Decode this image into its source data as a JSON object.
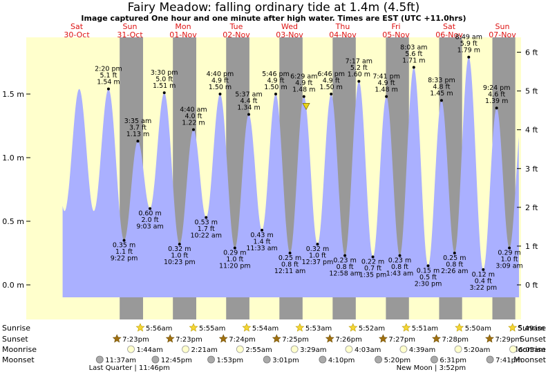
{
  "chart_data": {
    "type": "area",
    "title": "Fairy Meadow: falling  ordinary tide at 1.4m (4.5ft)",
    "subtitle": "Image captured One hour and one minute after high water. Times are EST (UTC +11.0hrs)",
    "days": [
      {
        "dow": "Sat",
        "date": "30-Oct",
        "hour": 0
      },
      {
        "dow": "Sun",
        "date": "31-Oct",
        "hour": 24
      },
      {
        "dow": "Mon",
        "date": "01-Nov",
        "hour": 48
      },
      {
        "dow": "Tue",
        "date": "02-Nov",
        "hour": 72
      },
      {
        "dow": "Wed",
        "date": "03-Nov",
        "hour": 96
      },
      {
        "dow": "Thu",
        "date": "04-Nov",
        "hour": 120
      },
      {
        "dow": "Fri",
        "date": "05-Nov",
        "hour": 144
      },
      {
        "dow": "Sat",
        "date": "06-Nov",
        "hour": 168
      },
      {
        "dow": "Sun",
        "date": "07-Nov",
        "hour": 192
      }
    ],
    "y_left_ticks": [
      {
        "v": 0.0,
        "label": "0.0 m"
      },
      {
        "v": 0.5,
        "label": "0.5 m"
      },
      {
        "v": 1.0,
        "label": "1.0 m"
      },
      {
        "v": 1.5,
        "label": "1.5 m"
      }
    ],
    "y_right_ticks": [
      {
        "ft": 0,
        "label": "0 ft"
      },
      {
        "ft": 1,
        "label": "1 ft"
      },
      {
        "ft": 2,
        "label": "2 ft"
      },
      {
        "ft": 3,
        "label": "3 ft"
      },
      {
        "ft": 4,
        "label": "4 ft"
      },
      {
        "ft": 5,
        "label": "5 ft"
      },
      {
        "ft": 6,
        "label": "6 ft"
      }
    ],
    "ylim_m": [
      -0.2,
      1.95
    ],
    "series_start_level": 0.62,
    "tides": [
      {
        "hour": 14.33,
        "type": "high",
        "time": "2:20 pm",
        "ft": "5.1 ft",
        "m": 1.54,
        "m_label": "1.54 m"
      },
      {
        "hour": 21.37,
        "type": "low",
        "time": "9:22 pm",
        "ft": "1.1 ft",
        "m": 0.35,
        "m_label": "0.35 m"
      },
      {
        "hour": 27.58,
        "type": "high",
        "time": "3:35 am",
        "ft": "3.7 ft",
        "m": 1.13,
        "m_label": "1.13 m"
      },
      {
        "hour": 33.05,
        "type": "low",
        "time": "9:03 am",
        "ft": "2.0 ft",
        "m": 0.6,
        "m_label": "0.60 m"
      },
      {
        "hour": 39.5,
        "type": "high",
        "time": "3:30 pm",
        "ft": "5.0 ft",
        "m": 1.51,
        "m_label": "1.51 m"
      },
      {
        "hour": 46.38,
        "type": "low",
        "time": "10:23 pm",
        "ft": "1.0 ft",
        "m": 0.32,
        "m_label": "0.32 m"
      },
      {
        "hour": 52.67,
        "type": "high",
        "time": "4:40 am",
        "ft": "4.0 ft",
        "m": 1.22,
        "m_label": "1.22 m"
      },
      {
        "hour": 58.37,
        "type": "low",
        "time": "10:22 am",
        "ft": "1.7 ft",
        "m": 0.53,
        "m_label": "0.53 m"
      },
      {
        "hour": 64.67,
        "type": "high",
        "time": "4:40 pm",
        "ft": "4.9 ft",
        "m": 1.5,
        "m_label": "1.50 m"
      },
      {
        "hour": 71.33,
        "type": "low",
        "time": "11:20 pm",
        "ft": "1.0 ft",
        "m": 0.29,
        "m_label": "0.29 m"
      },
      {
        "hour": 77.62,
        "type": "high",
        "time": "5:37 am",
        "ft": "4.4 ft",
        "m": 1.34,
        "m_label": "1.34 m"
      },
      {
        "hour": 83.55,
        "type": "low",
        "time": "11:33 am",
        "ft": "1.4 ft",
        "m": 0.43,
        "m_label": "0.43 m"
      },
      {
        "hour": 89.77,
        "type": "high",
        "time": "5:46 pm",
        "ft": "4.9 ft",
        "m": 1.5,
        "m_label": "1.50 m"
      },
      {
        "hour": 96.18,
        "type": "low",
        "time": "12:11 am",
        "ft": "0.8 ft",
        "m": 0.25,
        "m_label": "0.25 m"
      },
      {
        "hour": 102.48,
        "type": "high",
        "time": "6:29 am",
        "ft": "4.9 ft",
        "m": 1.48,
        "m_label": "1.48 m"
      },
      {
        "hour": 108.62,
        "type": "low",
        "time": "12:37 pm",
        "ft": "1.0 ft",
        "m": 0.32,
        "m_label": "0.32 m"
      },
      {
        "hour": 114.77,
        "type": "high",
        "time": "6:46 pm",
        "ft": "4.9 ft",
        "m": 1.5,
        "m_label": "1.50 m"
      },
      {
        "hour": 120.97,
        "type": "low",
        "time": "12:58 am",
        "ft": "0.8 ft",
        "m": 0.23,
        "m_label": "0.23 m"
      },
      {
        "hour": 127.28,
        "type": "high",
        "time": "7:17 am",
        "ft": "5.2 ft",
        "m": 1.6,
        "m_label": "1.60 m"
      },
      {
        "hour": 133.58,
        "type": "low",
        "time": "1:35 pm",
        "ft": "0.7 ft",
        "m": 0.22,
        "m_label": "0.22 m"
      },
      {
        "hour": 139.68,
        "type": "high",
        "time": "7:41 pm",
        "ft": "4.9 ft",
        "m": 1.48,
        "m_label": "1.48 m"
      },
      {
        "hour": 145.72,
        "type": "low",
        "time": "1:43 am",
        "ft": "0.8 ft",
        "m": 0.23,
        "m_label": "0.23 m"
      },
      {
        "hour": 152.05,
        "type": "high",
        "time": "8:03 am",
        "ft": "5.6 ft",
        "m": 1.71,
        "m_label": "1.71 m"
      },
      {
        "hour": 158.5,
        "type": "low",
        "time": "2:30 pm",
        "ft": "0.5 ft",
        "m": 0.15,
        "m_label": "0.15 m"
      },
      {
        "hour": 164.55,
        "type": "high",
        "time": "8:33 pm",
        "ft": "4.8 ft",
        "m": 1.45,
        "m_label": "1.45 m"
      },
      {
        "hour": 170.43,
        "type": "low",
        "time": "2:26 am",
        "ft": "0.8 ft",
        "m": 0.25,
        "m_label": "0.25 m"
      },
      {
        "hour": 176.82,
        "type": "high",
        "time": "8:49 am",
        "ft": "5.9 ft",
        "m": 1.79,
        "m_label": "1.79 m"
      },
      {
        "hour": 183.37,
        "type": "low",
        "time": "3:22 pm",
        "ft": "0.4 ft",
        "m": 0.12,
        "m_label": "0.12 m"
      },
      {
        "hour": 189.4,
        "type": "high",
        "time": "9:24 pm",
        "ft": "4.6 ft",
        "m": 1.39,
        "m_label": "1.39 m"
      },
      {
        "hour": 195.15,
        "type": "low",
        "time": "3:09 am",
        "ft": "1.0 ft",
        "m": 0.29,
        "m_label": "0.29 m"
      }
    ],
    "series_end_hour": 199.5,
    "series_end_level": 0.95,
    "current_marker": {
      "hour": 103.5,
      "m": 1.4
    },
    "nights": [
      {
        "sunset_h": 19.38,
        "sunrise_h": 29.93
      },
      {
        "sunset_h": 43.38,
        "sunrise_h": 53.92
      },
      {
        "sunset_h": 67.4,
        "sunrise_h": 77.9
      },
      {
        "sunset_h": 91.42,
        "sunrise_h": 101.88
      },
      {
        "sunset_h": 115.43,
        "sunrise_h": 125.87
      },
      {
        "sunset_h": 139.45,
        "sunrise_h": 149.85
      },
      {
        "sunset_h": 163.47,
        "sunrise_h": 173.83
      },
      {
        "sunset_h": 187.48,
        "sunrise_h": 197.82
      }
    ],
    "rows": {
      "sunrise_label": "Sunrise",
      "sunset_label": "Sunset",
      "moonrise_label": "Moonrise",
      "moonset_label": "Moonset",
      "sunrise": [
        {
          "hour": 29.93,
          "time": "5:56am"
        },
        {
          "hour": 53.92,
          "time": "5:55am"
        },
        {
          "hour": 77.9,
          "time": "5:54am"
        },
        {
          "hour": 101.88,
          "time": "5:53am"
        },
        {
          "hour": 125.87,
          "time": "5:52am"
        },
        {
          "hour": 149.85,
          "time": "5:51am"
        },
        {
          "hour": 173.83,
          "time": "5:50am"
        },
        {
          "hour": 197.82,
          "time": "5:49am"
        }
      ],
      "sunset": [
        {
          "hour": 19.38,
          "time": "7:23pm"
        },
        {
          "hour": 43.38,
          "time": "7:23pm"
        },
        {
          "hour": 67.4,
          "time": "7:24pm"
        },
        {
          "hour": 91.42,
          "time": "7:25pm"
        },
        {
          "hour": 115.43,
          "time": "7:26pm"
        },
        {
          "hour": 139.45,
          "time": "7:27pm"
        },
        {
          "hour": 163.47,
          "time": "7:28pm"
        },
        {
          "hour": 187.48,
          "time": "7:29pm"
        }
      ],
      "moonrise": [
        {
          "hour": 25.73,
          "time": "1:44am"
        },
        {
          "hour": 50.35,
          "time": "2:21am"
        },
        {
          "hour": 74.92,
          "time": "2:55am"
        },
        {
          "hour": 99.48,
          "time": "3:29am"
        },
        {
          "hour": 124.05,
          "time": "4:03am"
        },
        {
          "hour": 148.65,
          "time": "4:39am"
        },
        {
          "hour": 173.33,
          "time": "5:20am"
        },
        {
          "hour": 198.08,
          "time": "6:05am"
        }
      ],
      "moonset": [
        {
          "hour": 11.62,
          "time": "11:37am"
        },
        {
          "hour": 36.75,
          "time": "12:45pm"
        },
        {
          "hour": 61.88,
          "time": "1:53pm"
        },
        {
          "hour": 87.02,
          "time": "3:01pm"
        },
        {
          "hour": 112.17,
          "time": "4:10pm"
        },
        {
          "hour": 137.33,
          "time": "5:20pm"
        },
        {
          "hour": 162.52,
          "time": "6:31pm"
        },
        {
          "hour": 187.68,
          "time": "7:41pm"
        }
      ],
      "moon_phases": [
        {
          "hour": 23.77,
          "text": "Last Quarter | 11:46pm"
        },
        {
          "hour": 159.87,
          "text": "New Moon | 3:52pm"
        }
      ]
    },
    "colors": {
      "day_band": "#ffffcc",
      "night_band": "#999999",
      "water": "#aab0ff",
      "day_label": "#dd1111",
      "sun_icon": "#f5d633",
      "sunset_icon": "#a07010",
      "moonrise_fill": "#ffffcc",
      "moonset_fill": "#aaaaaa",
      "current_marker": "#e8d41a"
    }
  }
}
